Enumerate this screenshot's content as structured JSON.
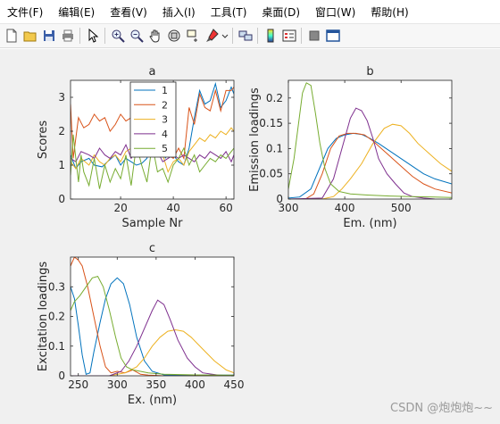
{
  "menu": [
    "文件(F)",
    "编辑(E)",
    "查看(V)",
    "插入(I)",
    "工具(T)",
    "桌面(D)",
    "窗口(W)",
    "帮助(H)"
  ],
  "toolbar_icons": [
    "new-file-icon",
    "open-folder-icon",
    "save-icon",
    "print-icon",
    "pointer-icon",
    "zoom-in-icon",
    "zoom-out-icon",
    "pan-hand-icon",
    "rotate-3d-icon",
    "data-cursor-icon",
    "brush-icon",
    "link-icon",
    "colorbar-icon",
    "legend-icon",
    "hide-tools-icon",
    "dock-icon"
  ],
  "colors": {
    "c1": "#0072BD",
    "c2": "#D95319",
    "c3": "#EDB120",
    "c4": "#7E2F8E",
    "c5": "#77AC30"
  },
  "watermark": "CSDN @炮炮炮~~",
  "chart_data": [
    {
      "id": "a",
      "type": "line",
      "title": "a",
      "xlabel": "Sample Nr",
      "ylabel": "Scores",
      "xlim": [
        1,
        63
      ],
      "ylim": [
        0,
        3.5
      ],
      "xticks": [
        20,
        40,
        60
      ],
      "yticks": [
        0,
        1,
        2,
        3
      ],
      "legend": "top-center",
      "series": [
        {
          "name": "1",
          "color": "c1",
          "x": [
            1,
            3,
            5,
            8,
            10,
            13,
            15,
            18,
            20,
            22,
            24,
            26,
            28,
            30,
            32,
            34,
            35,
            36,
            37,
            38,
            40,
            42,
            44,
            46,
            48,
            50,
            52,
            54,
            56,
            58,
            60,
            62,
            63
          ],
          "y": [
            1.3,
            0.9,
            1.1,
            1.2,
            1.0,
            0.95,
            1.1,
            1.3,
            1.0,
            1.2,
            1.1,
            1.0,
            1.05,
            1.2,
            1.9,
            2.1,
            2.6,
            1.8,
            1.2,
            1.9,
            1.3,
            1.1,
            1.0,
            1.5,
            2.4,
            3.2,
            2.8,
            2.9,
            3.4,
            2.7,
            2.9,
            3.3,
            3.1
          ]
        },
        {
          "name": "2",
          "color": "c2",
          "x": [
            1,
            2,
            4,
            6,
            8,
            10,
            12,
            14,
            16,
            18,
            20,
            22,
            24,
            26,
            28,
            30,
            32,
            34,
            36,
            38,
            40,
            42,
            44,
            46,
            48,
            50,
            52,
            54,
            56,
            58,
            60,
            62,
            63
          ],
          "y": [
            2.8,
            1.2,
            2.4,
            2.1,
            2.2,
            2.5,
            2.3,
            2.4,
            2.0,
            2.2,
            2.5,
            2.3,
            2.4,
            2.5,
            2.3,
            2.5,
            2.6,
            2.4,
            2.2,
            1.3,
            1.2,
            1.5,
            1.2,
            2.7,
            2.2,
            3.1,
            2.7,
            2.6,
            3.2,
            2.6,
            3.2,
            3.2,
            3.3
          ]
        },
        {
          "name": "3",
          "color": "c3",
          "x": [
            1,
            3,
            5,
            8,
            10,
            12,
            14,
            16,
            18,
            20,
            22,
            24,
            26,
            28,
            30,
            32,
            34,
            36,
            38,
            40,
            42,
            44,
            46,
            48,
            50,
            52,
            54,
            56,
            58,
            60,
            62,
            63
          ],
          "y": [
            1.1,
            0.9,
            1.2,
            1.0,
            1.3,
            1.1,
            1.0,
            1.2,
            1.3,
            1.1,
            1.4,
            1.5,
            1.3,
            1.4,
            1.6,
            1.5,
            1.8,
            1.3,
            0.8,
            1.1,
            1.2,
            1.0,
            1.4,
            1.6,
            1.8,
            1.7,
            1.9,
            1.8,
            2.0,
            1.9,
            2.1,
            2.0
          ]
        },
        {
          "name": "4",
          "color": "c4",
          "x": [
            1,
            3,
            5,
            8,
            10,
            12,
            14,
            16,
            18,
            20,
            22,
            24,
            26,
            28,
            30,
            32,
            34,
            36,
            38,
            40,
            42,
            44,
            46,
            48,
            50,
            52,
            54,
            56,
            58,
            60,
            62,
            63
          ],
          "y": [
            1.2,
            1.1,
            1.4,
            1.3,
            1.2,
            1.5,
            1.3,
            1.2,
            1.4,
            1.3,
            1.6,
            1.2,
            1.5,
            1.3,
            1.4,
            1.3,
            1.4,
            1.1,
            1.2,
            1.3,
            1.2,
            1.3,
            1.2,
            1.1,
            1.3,
            1.2,
            1.4,
            1.3,
            1.2,
            1.4,
            1.1,
            1.3
          ]
        },
        {
          "name": "5",
          "color": "c5",
          "x": [
            1,
            2,
            3,
            4,
            5,
            6,
            8,
            10,
            12,
            14,
            16,
            18,
            20,
            22,
            24,
            26,
            28,
            30,
            32,
            34,
            36,
            38,
            40,
            42,
            44,
            46,
            48,
            50,
            52,
            54,
            56,
            58,
            60,
            62,
            63
          ],
          "y": [
            0.7,
            1.9,
            1.2,
            0.5,
            1.3,
            0.8,
            0.4,
            1.2,
            0.3,
            1.0,
            0.5,
            0.9,
            0.6,
            1.3,
            0.4,
            1.6,
            1.0,
            0.5,
            1.6,
            0.8,
            0.9,
            0.5,
            1.0,
            1.2,
            1.5,
            1.0,
            1.3,
            0.8,
            1.0,
            1.2,
            1.1,
            1.3,
            1.2,
            1.4,
            1.5
          ]
        }
      ]
    },
    {
      "id": "b",
      "type": "line",
      "title": "b",
      "xlabel": "Em. (nm)",
      "ylabel": "Emission loadings",
      "xlim": [
        300,
        590
      ],
      "ylim": [
        0,
        0.235
      ],
      "xticks": [
        300,
        400,
        500
      ],
      "yticks": [
        0,
        0.05,
        0.1,
        0.15,
        0.2
      ],
      "series": [
        {
          "color": "c1",
          "x": [
            300,
            320,
            340,
            355,
            370,
            385,
            400,
            415,
            430,
            445,
            460,
            480,
            500,
            520,
            540,
            560,
            590
          ],
          "y": [
            0.002,
            0.004,
            0.02,
            0.06,
            0.1,
            0.12,
            0.127,
            0.13,
            0.128,
            0.12,
            0.11,
            0.095,
            0.08,
            0.065,
            0.05,
            0.04,
            0.03
          ]
        },
        {
          "color": "c2",
          "x": [
            300,
            330,
            345,
            360,
            375,
            390,
            405,
            420,
            435,
            450,
            465,
            480,
            500,
            520,
            540,
            560,
            590
          ],
          "y": [
            0.0,
            0.0,
            0.01,
            0.05,
            0.1,
            0.125,
            0.13,
            0.13,
            0.127,
            0.115,
            0.1,
            0.085,
            0.065,
            0.045,
            0.03,
            0.02,
            0.012
          ]
        },
        {
          "color": "c3",
          "x": [
            300,
            360,
            380,
            395,
            410,
            430,
            450,
            470,
            485,
            500,
            515,
            530,
            550,
            570,
            590
          ],
          "y": [
            0.0,
            0.0,
            0.005,
            0.02,
            0.04,
            0.07,
            0.11,
            0.14,
            0.148,
            0.145,
            0.13,
            0.11,
            0.09,
            0.07,
            0.055
          ]
        },
        {
          "color": "c4",
          "x": [
            300,
            360,
            380,
            390,
            400,
            410,
            420,
            430,
            440,
            450,
            460,
            475,
            490,
            505,
            520,
            540,
            560
          ],
          "y": [
            0.0,
            0.002,
            0.04,
            0.08,
            0.12,
            0.16,
            0.18,
            0.175,
            0.155,
            0.12,
            0.08,
            0.05,
            0.03,
            0.012,
            0.005,
            0.002,
            0.0
          ]
        },
        {
          "color": "c5",
          "x": [
            300,
            310,
            318,
            325,
            332,
            340,
            348,
            356,
            365,
            375,
            390,
            410,
            440,
            480,
            520,
            560,
            590
          ],
          "y": [
            0.02,
            0.08,
            0.15,
            0.21,
            0.23,
            0.225,
            0.17,
            0.11,
            0.06,
            0.03,
            0.015,
            0.01,
            0.008,
            0.006,
            0.005,
            0.004,
            0.003
          ]
        }
      ]
    },
    {
      "id": "c",
      "type": "line",
      "title": "c",
      "xlabel": "Ex. (nm)",
      "ylabel": "Excitation loadings",
      "xlim": [
        240,
        450
      ],
      "ylim": [
        0,
        0.4
      ],
      "xticks": [
        250,
        300,
        350,
        400,
        450
      ],
      "yticks": [
        0,
        0.1,
        0.2,
        0.3
      ],
      "series": [
        {
          "color": "c1",
          "x": [
            240,
            245,
            250,
            255,
            260,
            265,
            270,
            278,
            285,
            292,
            300,
            308,
            316,
            325,
            335,
            345,
            360,
            380,
            400,
            450
          ],
          "y": [
            0.3,
            0.26,
            0.17,
            0.07,
            0.005,
            0.01,
            0.08,
            0.18,
            0.26,
            0.31,
            0.33,
            0.31,
            0.24,
            0.13,
            0.05,
            0.015,
            0.003,
            0.002,
            0.002,
            0.002
          ]
        },
        {
          "color": "c2",
          "x": [
            240,
            245,
            250,
            255,
            262,
            270,
            278,
            285,
            292,
            300,
            310,
            320,
            330,
            340,
            360,
            400,
            450
          ],
          "y": [
            0.37,
            0.4,
            0.39,
            0.37,
            0.3,
            0.2,
            0.1,
            0.03,
            0.01,
            0.015,
            0.01,
            0.02,
            0.005,
            0.002,
            0.0,
            0.0,
            0.0
          ]
        },
        {
          "color": "c3",
          "x": [
            240,
            270,
            290,
            310,
            325,
            335,
            345,
            355,
            365,
            375,
            385,
            395,
            410,
            425,
            440,
            450
          ],
          "y": [
            0.0,
            0.0,
            0.0,
            0.01,
            0.03,
            0.06,
            0.1,
            0.13,
            0.15,
            0.155,
            0.15,
            0.13,
            0.09,
            0.05,
            0.02,
            0.01
          ]
        },
        {
          "color": "c4",
          "x": [
            240,
            290,
            305,
            315,
            325,
            335,
            345,
            352,
            360,
            368,
            378,
            390,
            400,
            410,
            430,
            450
          ],
          "y": [
            0.0,
            0.0,
            0.015,
            0.05,
            0.1,
            0.16,
            0.22,
            0.255,
            0.24,
            0.19,
            0.12,
            0.06,
            0.03,
            0.01,
            0.002,
            0.0
          ]
        },
        {
          "color": "c5",
          "x": [
            240,
            245,
            252,
            260,
            268,
            275,
            282,
            290,
            298,
            305,
            312,
            320,
            330,
            340,
            360,
            400,
            450
          ],
          "y": [
            0.22,
            0.25,
            0.27,
            0.3,
            0.33,
            0.335,
            0.3,
            0.22,
            0.13,
            0.06,
            0.03,
            0.02,
            0.015,
            0.01,
            0.005,
            0.003,
            0.002
          ]
        }
      ]
    }
  ]
}
